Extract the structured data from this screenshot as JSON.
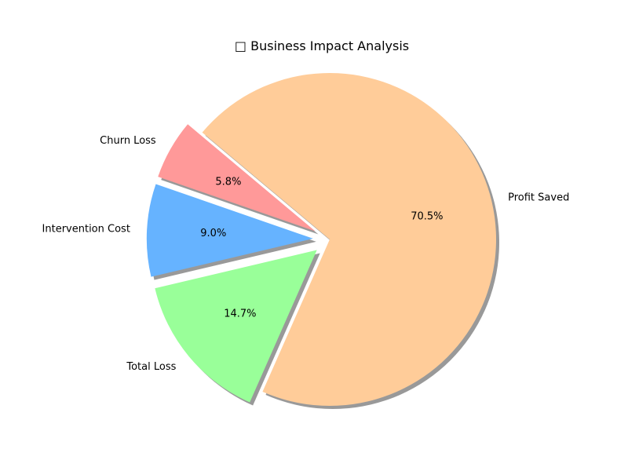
{
  "chart_data": {
    "type": "pie",
    "title": "□ Business Impact Analysis",
    "slices": [
      {
        "label": "Churn Loss",
        "value": 5.8,
        "pct_label": "5.8%",
        "color": "#ff9999",
        "exploded": true
      },
      {
        "label": "Intervention Cost",
        "value": 9.0,
        "pct_label": "9.0%",
        "color": "#66b3ff",
        "exploded": true
      },
      {
        "label": "Total Loss",
        "value": 14.7,
        "pct_label": "14.7%",
        "color": "#99ff99",
        "exploded": true
      },
      {
        "label": "Profit Saved",
        "value": 70.5,
        "pct_label": "70.5%",
        "color": "#ffcc99",
        "exploded": false
      }
    ],
    "shadow": true
  }
}
